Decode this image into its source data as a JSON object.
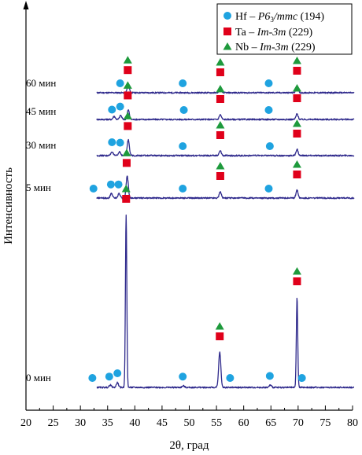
{
  "chart_data": {
    "type": "line",
    "xlabel": "2θ, град",
    "ylabel": "Интенсивность",
    "xlim": [
      20,
      80
    ],
    "xticks": [
      20,
      25,
      30,
      35,
      40,
      45,
      50,
      55,
      60,
      65,
      70,
      75,
      80
    ],
    "y_axis_ticks": "none",
    "grid": false,
    "legend_position": "top-right",
    "line_color": "#2f2a8c",
    "legend": [
      {
        "marker": "circle",
        "color": "#1fa3e0",
        "label": "Hf – P6₃/mmc (194)"
      },
      {
        "marker": "square",
        "color": "#e0001a",
        "label": "Ta – Im-3m (229)"
      },
      {
        "marker": "triangle",
        "color": "#1e9a3c",
        "label": "Nb – Im-3m (229)"
      }
    ],
    "series": [
      {
        "name": "60 мин",
        "peaks": [
          {
            "x": 38.8,
            "intensity": 0.1
          },
          {
            "x": 55.7,
            "intensity": 0.06
          },
          {
            "x": 69.8,
            "intensity": 0.08
          }
        ],
        "markers": {
          "circle": [
            37.3,
            48.8,
            64.6
          ],
          "square": [
            38.7,
            55.7,
            69.8
          ],
          "triangle": [
            38.7,
            55.7,
            69.8
          ]
        }
      },
      {
        "name": "45 мин",
        "peaks": [
          {
            "x": 36.2,
            "intensity": 0.04
          },
          {
            "x": 37.4,
            "intensity": 0.05
          },
          {
            "x": 38.8,
            "intensity": 0.12
          },
          {
            "x": 55.7,
            "intensity": 0.06
          },
          {
            "x": 69.8,
            "intensity": 0.07
          }
        ],
        "markers": {
          "circle": [
            35.8,
            37.3,
            49.0,
            64.6
          ],
          "square": [
            38.7,
            55.7,
            69.8
          ],
          "triangle": [
            38.7,
            55.7,
            69.8
          ]
        }
      },
      {
        "name": "30 мин",
        "peaks": [
          {
            "x": 35.8,
            "intensity": 0.05
          },
          {
            "x": 37.2,
            "intensity": 0.05
          },
          {
            "x": 38.8,
            "intensity": 0.2
          },
          {
            "x": 55.7,
            "intensity": 0.06
          },
          {
            "x": 69.8,
            "intensity": 0.08
          }
        ],
        "markers": {
          "circle": [
            35.8,
            37.3,
            48.8,
            64.8
          ],
          "square": [
            38.7,
            55.7,
            69.8
          ],
          "triangle": [
            38.7,
            55.7,
            69.8
          ]
        }
      },
      {
        "name": "5 мин",
        "peaks": [
          {
            "x": 35.7,
            "intensity": 0.06
          },
          {
            "x": 37.1,
            "intensity": 0.06
          },
          {
            "x": 38.6,
            "intensity": 0.28
          },
          {
            "x": 55.7,
            "intensity": 0.08
          },
          {
            "x": 69.8,
            "intensity": 0.1
          }
        ],
        "markers": {
          "circle": [
            32.4,
            35.6,
            37.0,
            48.8,
            64.6
          ],
          "square": [
            38.5,
            55.7,
            69.8
          ],
          "triangle": [
            38.5,
            55.7,
            69.8
          ]
        }
      },
      {
        "name": "0 мин",
        "peaks": [
          {
            "x": 35.5,
            "intensity": 0.03
          },
          {
            "x": 36.8,
            "intensity": 0.06
          },
          {
            "x": 38.4,
            "intensity": 2.2
          },
          {
            "x": 48.9,
            "intensity": 0.02
          },
          {
            "x": 55.6,
            "intensity": 0.45
          },
          {
            "x": 64.9,
            "intensity": 0.03
          },
          {
            "x": 69.8,
            "intensity": 1.15
          }
        ],
        "markers": {
          "circle": [
            32.2,
            35.3,
            36.8,
            48.8,
            57.5,
            64.8,
            70.7
          ],
          "square": [
            38.4,
            55.6,
            69.8
          ],
          "triangle": [
            38.4,
            55.6,
            69.8
          ]
        }
      }
    ]
  }
}
